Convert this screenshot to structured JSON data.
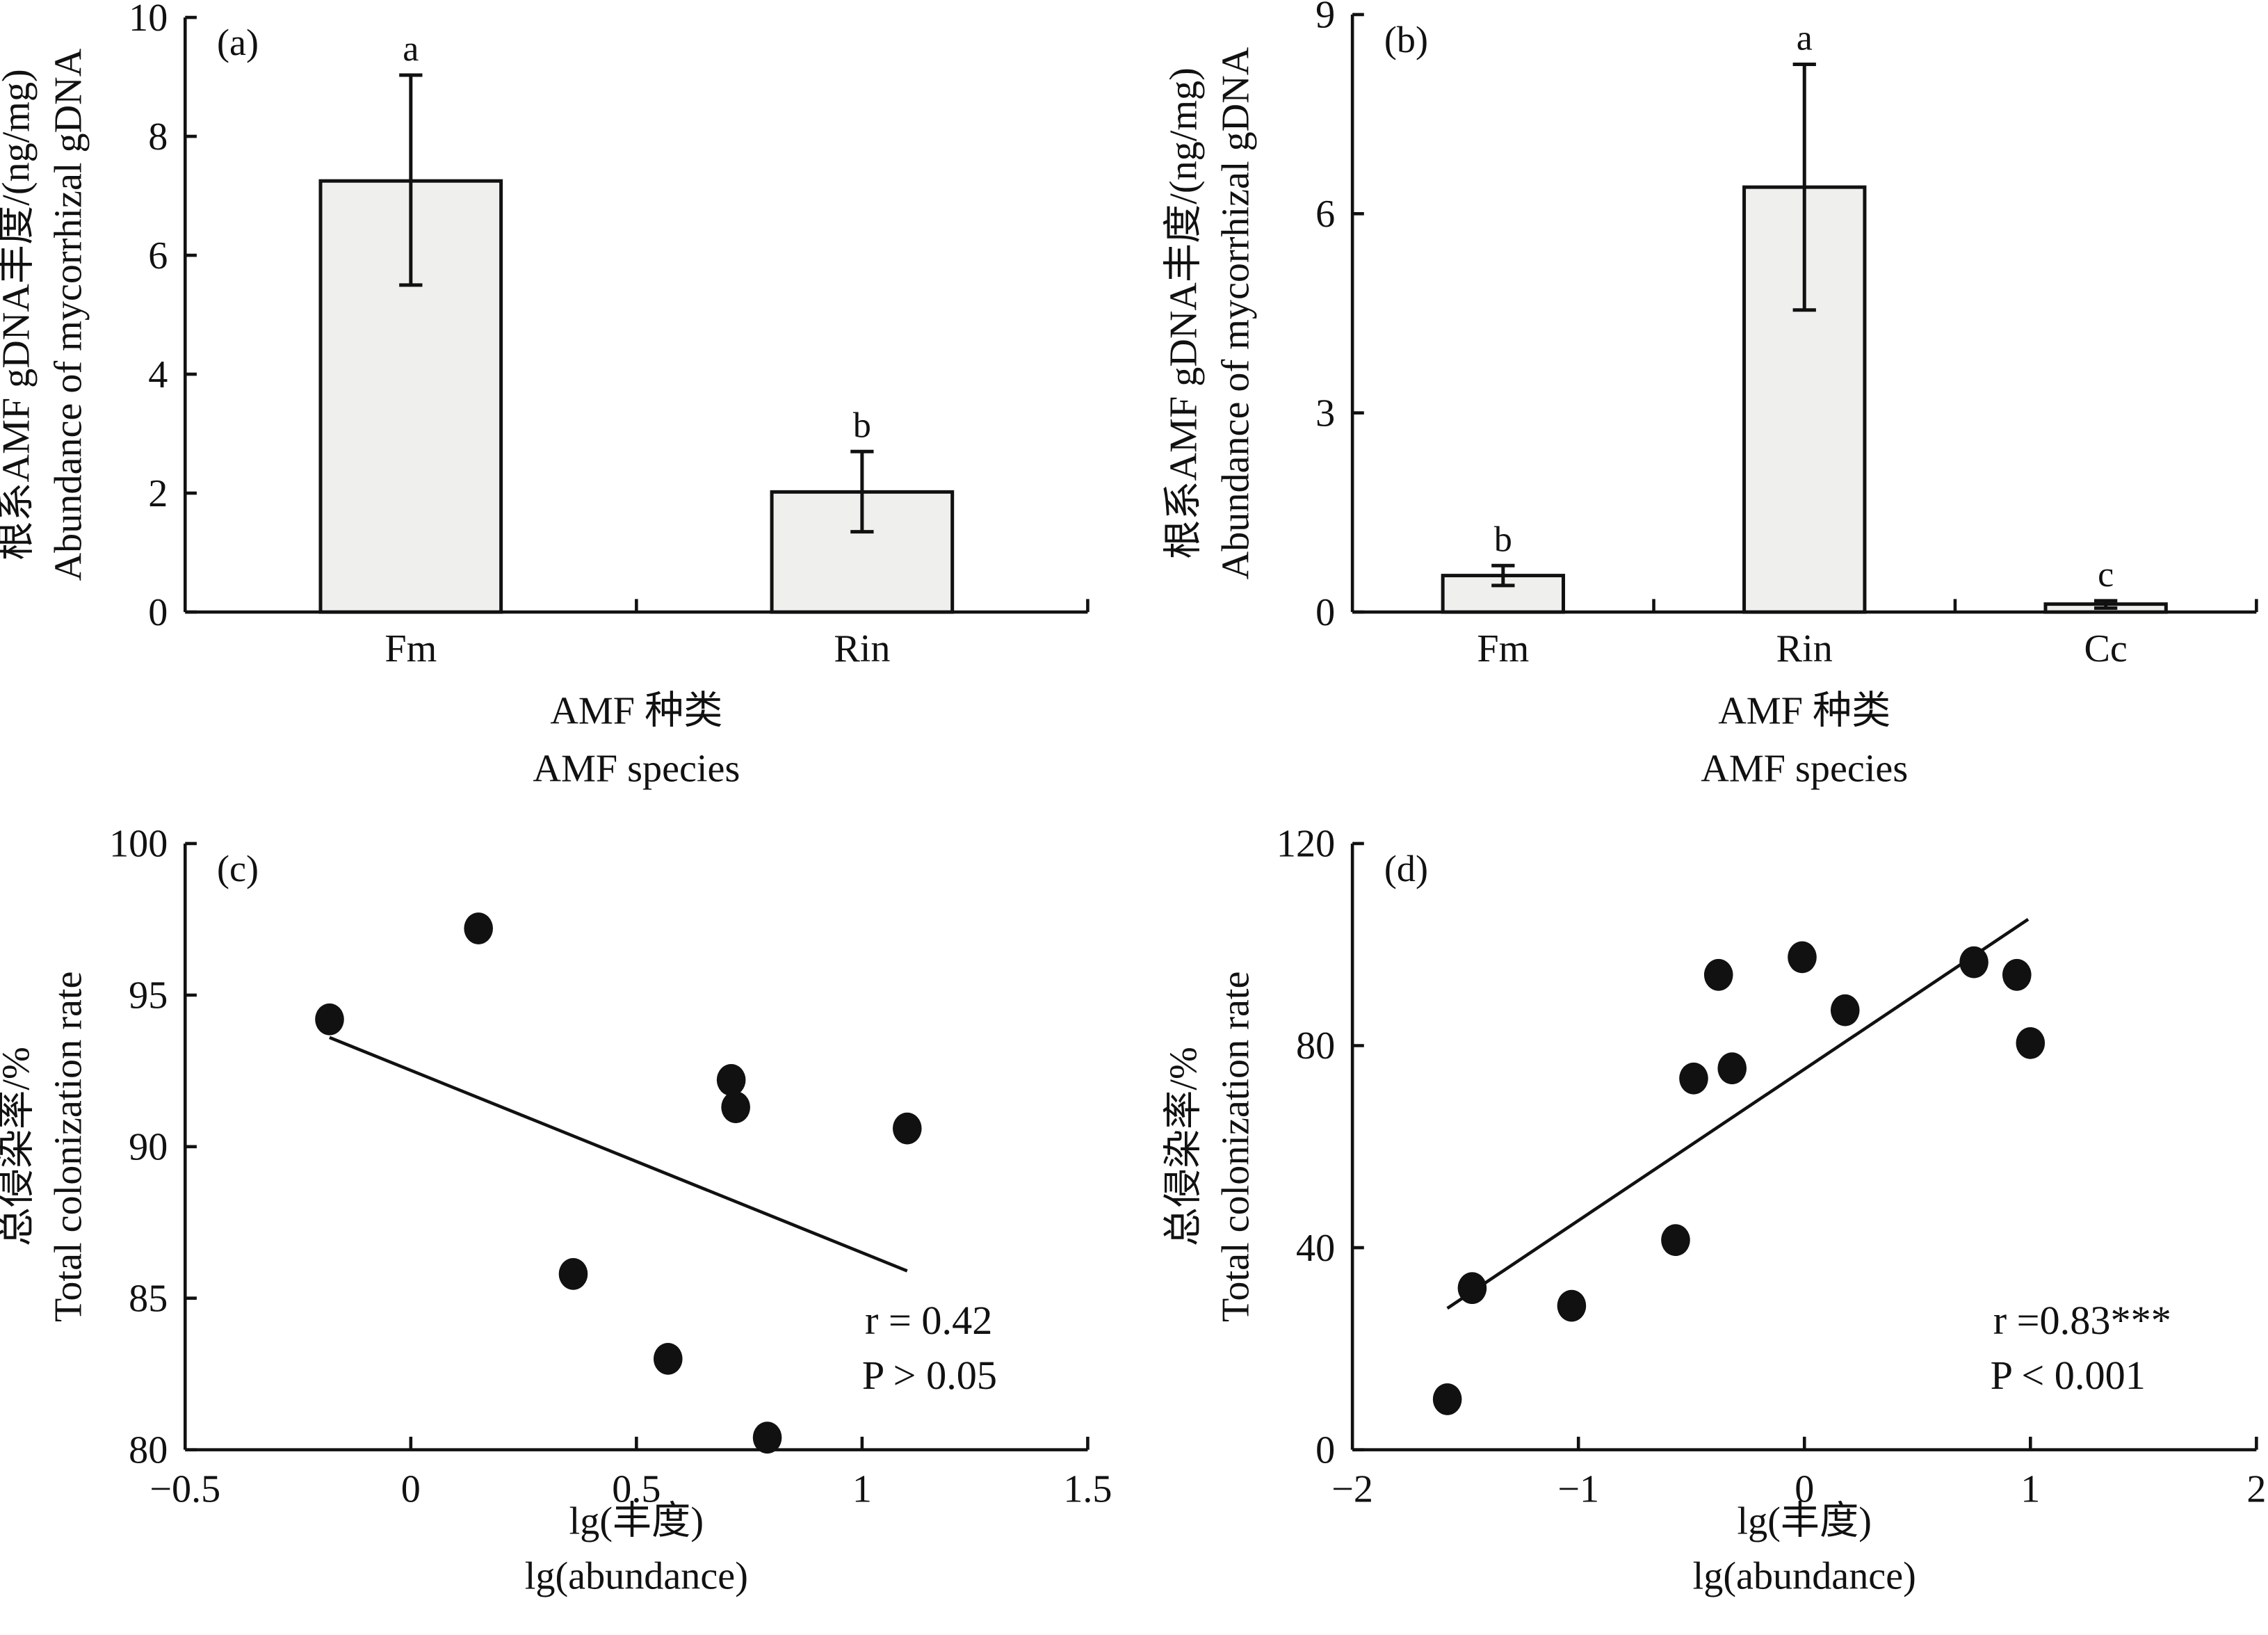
{
  "chart_data": [
    {
      "type": "bar",
      "panel_label": "(a)",
      "categories": [
        "Fm",
        "Rin"
      ],
      "values": [
        7.25,
        2.02
      ],
      "error_low": [
        5.5,
        1.35
      ],
      "error_high": [
        9.03,
        2.7
      ],
      "significance": [
        "a",
        "b"
      ],
      "ylim": [
        0,
        10
      ],
      "yticks": [
        "0",
        "2",
        "4",
        "6",
        "8",
        "10"
      ],
      "ytick_values": [
        0,
        2,
        4,
        6,
        8,
        10
      ],
      "ylabel_cn": "根系AMF gDNA丰度/(ng/mg)",
      "ylabel_en": "Abundance of mycorrhizal gDNA",
      "xlabel_cn": "AMF 种类",
      "xlabel_en": "AMF species"
    },
    {
      "type": "bar",
      "panel_label": "(b)",
      "categories": [
        "Fm",
        "Rin",
        "Cc"
      ],
      "values": [
        0.55,
        6.4,
        0.12
      ],
      "error_low": [
        0.4,
        4.55,
        0.06
      ],
      "error_high": [
        0.7,
        8.25,
        0.17
      ],
      "significance": [
        "b",
        "a",
        "c"
      ],
      "ylim": [
        0,
        9
      ],
      "yticks": [
        "0",
        "3",
        "6",
        "9"
      ],
      "ytick_values": [
        0,
        3,
        6,
        9
      ],
      "ylabel_cn": "根系AMF gDNA丰度/(ng/mg)",
      "ylabel_en": "Abundance of mycorrhizal gDNA",
      "xlabel_cn": "AMF 种类",
      "xlabel_en": "AMF species"
    },
    {
      "type": "scatter",
      "panel_label": "(c)",
      "x": [
        -0.18,
        0.15,
        0.36,
        0.57,
        0.71,
        0.72,
        0.79,
        1.1
      ],
      "y": [
        94.2,
        97.2,
        85.8,
        83.0,
        92.2,
        91.3,
        80.4,
        90.6
      ],
      "fit_line": {
        "x": [
          -0.18,
          1.1
        ],
        "y": [
          93.6,
          85.9
        ]
      },
      "xlim": [
        -0.5,
        1.5
      ],
      "ylim": [
        80,
        100
      ],
      "xticks": [
        "−0.5",
        "0",
        "0.5",
        "1",
        "1.5"
      ],
      "xtick_values": [
        -0.5,
        0,
        0.5,
        1,
        1.5
      ],
      "yticks": [
        "80",
        "85",
        "90",
        "95",
        "100"
      ],
      "ytick_values": [
        80,
        85,
        90,
        95,
        100
      ],
      "annotation_r": "r = 0.42",
      "annotation_p": "P > 0.05",
      "ylabel_cn": "总侵染率/%",
      "ylabel_en": "Total colonization rate",
      "xlabel_cn": "lg(丰度)",
      "xlabel_en": "lg(abundance)"
    },
    {
      "type": "scatter",
      "panel_label": "(d)",
      "x": [
        -1.58,
        -1.47,
        -1.03,
        -0.57,
        -0.49,
        -0.38,
        -0.32,
        -0.01,
        0.18,
        0.75,
        0.94,
        1.0
      ],
      "y": [
        10,
        32,
        28.5,
        41.5,
        73.5,
        94,
        75.5,
        97.5,
        87,
        96.5,
        94,
        80.5
      ],
      "fit_line": {
        "x": [
          -1.58,
          0.99
        ],
        "y": [
          28,
          105
        ]
      },
      "xlim": [
        -2,
        2
      ],
      "ylim": [
        0,
        120
      ],
      "xticks": [
        "−2",
        "−1",
        "0",
        "1",
        "2"
      ],
      "xtick_values": [
        -2,
        -1,
        0,
        1,
        2
      ],
      "yticks": [
        "0",
        "40",
        "80",
        "120"
      ],
      "ytick_values": [
        0,
        40,
        80,
        120
      ],
      "annotation_r": "r =0.83***",
      "annotation_p": "P < 0.001",
      "ylabel_cn": "总侵染率/%",
      "ylabel_en": "Total colonization rate",
      "xlabel_cn": "lg(丰度)",
      "xlabel_en": "lg(abundance)"
    }
  ]
}
